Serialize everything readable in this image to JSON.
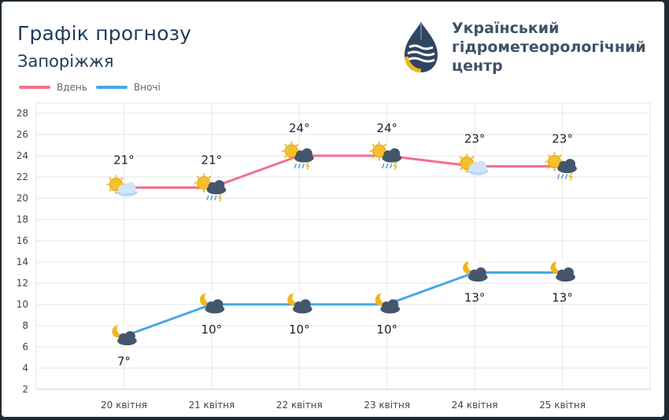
{
  "header": {
    "title": "Графік прогнозу",
    "subtitle": "Запоріжжя",
    "org_line1": "Український",
    "org_line2": "гідрометеорологічний",
    "org_line3": "центр"
  },
  "colors": {
    "day": "#f1708c",
    "night": "#45a8e3",
    "grid": "#e6e6e6",
    "text": "#444444"
  },
  "chart_data": {
    "type": "line",
    "categories": [
      "20 квітня",
      "21 квітня",
      "22 квітня",
      "23 квітня",
      "24 квітня",
      "25 квітня"
    ],
    "ylim": [
      2,
      28
    ],
    "yticks": [
      2,
      4,
      6,
      8,
      10,
      12,
      14,
      16,
      18,
      20,
      22,
      24,
      26,
      28
    ],
    "legend_position": "top-left",
    "grid": true,
    "series": [
      {
        "name": "Вдень",
        "values": [
          21,
          21,
          24,
          24,
          23,
          23
        ],
        "labels": [
          "21°",
          "21°",
          "24°",
          "24°",
          "23°",
          "23°"
        ],
        "icons": [
          "sun-cloud-icon",
          "sun-cloud-rain-thunder-icon",
          "sun-cloud-rain-thunder-icon",
          "sun-cloud-rain-thunder-icon",
          "sun-cloud-icon",
          "sun-cloud-rain-thunder-icon"
        ]
      },
      {
        "name": "Вночі",
        "values": [
          7,
          10,
          10,
          10,
          13,
          13
        ],
        "labels": [
          "7°",
          "10°",
          "10°",
          "10°",
          "13°",
          "13°"
        ],
        "icons": [
          "moon-cloud-icon",
          "moon-cloud-icon",
          "moon-cloud-icon",
          "moon-cloud-icon",
          "moon-cloud-icon",
          "moon-cloud-icon"
        ]
      }
    ]
  }
}
